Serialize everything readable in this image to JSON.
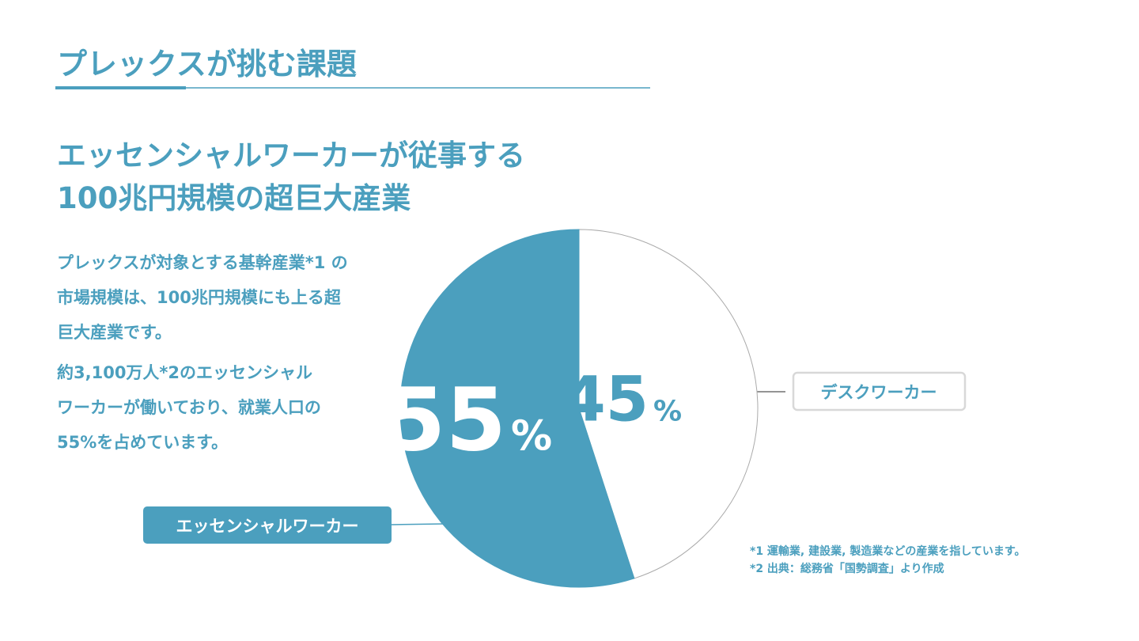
{
  "header": {
    "title": "プレックスが挑む課題"
  },
  "heading": [
    "エッセンシャルワーカーが従事する",
    "100兆円規模の超巨大産業"
  ],
  "paragraphs": [
    [
      "プレックスが対象とする基幹産業*1 の",
      "市場規模は、100兆円規模にも上る超",
      "巨大産業です。"
    ],
    [
      "約3,100万人*2のエッセンシャル",
      "ワーカーが働いており、就業人口の",
      "55%を占めています。"
    ]
  ],
  "chart_data": {
    "type": "pie",
    "categories": [
      "エッセンシャルワーカー",
      "デスクワーカー"
    ],
    "values": [
      55,
      45
    ],
    "value_suffix": "%",
    "colors": [
      "#4b9fbe",
      "#ffffff"
    ]
  },
  "footnotes": [
    "*1 運輸業, 建設業, 製造業などの産業を指しています。",
    "*2 出典：総務省「国勢調査」より作成"
  ]
}
